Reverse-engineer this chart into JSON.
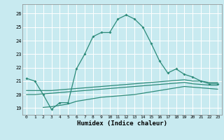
{
  "xlabel": "Humidex (Indice chaleur)",
  "bg_color": "#c8eaf0",
  "grid_color": "#ffffff",
  "line_color": "#2d8b7a",
  "xlim": [
    -0.5,
    23.5
  ],
  "ylim": [
    18.5,
    26.7
  ],
  "yticks": [
    19,
    20,
    21,
    22,
    23,
    24,
    25,
    26
  ],
  "xticks": [
    0,
    1,
    2,
    3,
    4,
    5,
    6,
    7,
    8,
    9,
    10,
    11,
    12,
    13,
    14,
    15,
    16,
    17,
    18,
    19,
    20,
    21,
    22,
    23
  ],
  "line1_x": [
    0,
    1,
    2,
    3,
    4,
    5,
    6,
    7,
    8,
    9,
    10,
    11,
    12,
    13,
    14,
    15,
    16,
    17,
    18,
    19,
    20,
    21,
    22,
    23
  ],
  "line1_y": [
    21.2,
    21.0,
    20.0,
    18.9,
    19.4,
    19.4,
    21.9,
    23.0,
    24.3,
    24.6,
    24.6,
    25.6,
    25.9,
    25.6,
    25.0,
    23.8,
    22.5,
    21.6,
    21.9,
    21.5,
    21.3,
    21.0,
    20.8,
    20.8
  ],
  "line2_x": [
    0,
    1,
    2,
    3,
    4,
    5,
    6,
    7,
    8,
    9,
    10,
    11,
    12,
    13,
    14,
    15,
    16,
    17,
    18,
    19,
    20,
    21,
    22,
    23
  ],
  "line2_y": [
    20.3,
    20.3,
    20.3,
    20.3,
    20.35,
    20.4,
    20.45,
    20.5,
    20.55,
    20.6,
    20.65,
    20.7,
    20.75,
    20.8,
    20.85,
    20.9,
    20.95,
    21.0,
    21.05,
    21.1,
    21.0,
    21.0,
    20.9,
    20.9
  ],
  "line3_x": [
    0,
    1,
    2,
    3,
    4,
    5,
    6,
    7,
    8,
    9,
    10,
    11,
    12,
    13,
    14,
    15,
    16,
    17,
    18,
    19,
    20,
    21,
    22,
    23
  ],
  "line3_y": [
    20.0,
    20.0,
    20.05,
    20.1,
    20.15,
    20.2,
    20.25,
    20.3,
    20.35,
    20.4,
    20.45,
    20.5,
    20.55,
    20.6,
    20.65,
    20.7,
    20.75,
    20.8,
    20.85,
    20.9,
    20.8,
    20.75,
    20.7,
    20.7
  ],
  "line4_x": [
    2,
    3,
    4,
    5,
    6,
    7,
    8,
    9,
    10,
    11,
    12,
    13,
    14,
    15,
    16,
    17,
    18,
    19,
    20,
    21,
    22,
    23
  ],
  "line4_y": [
    19.05,
    19.1,
    19.2,
    19.3,
    19.5,
    19.6,
    19.7,
    19.8,
    19.85,
    19.9,
    19.95,
    20.0,
    20.1,
    20.2,
    20.3,
    20.4,
    20.5,
    20.6,
    20.55,
    20.5,
    20.45,
    20.4
  ]
}
